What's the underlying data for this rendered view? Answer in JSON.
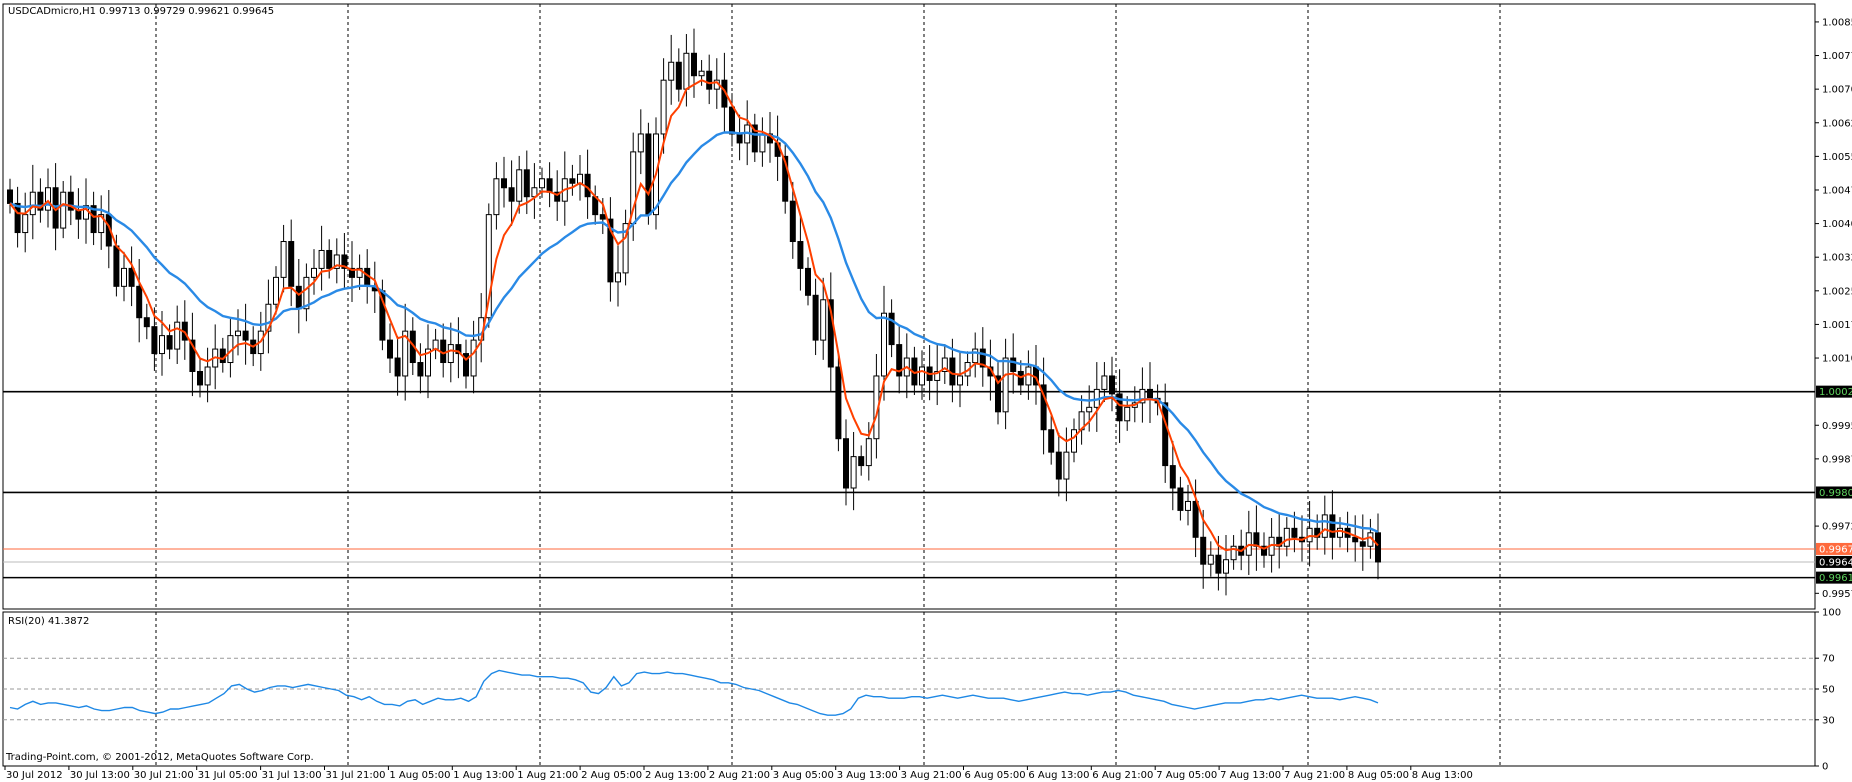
{
  "header": {
    "symbol_info": "USDCADmicro,H1  0.99713 0.99729 0.99621 0.99645"
  },
  "footer": {
    "copyright": "Trading-Point.com, © 2001-2012, MetaQuotes Software Corp."
  },
  "colors": {
    "background": "#ffffff",
    "candle_bull": "#ffffff",
    "candle_bear": "#000000",
    "ma_fast": "#ff4000",
    "ma_slow": "#2a8ae6",
    "rsi_line": "#1e88e5",
    "current_price_line": "#ff6a3d",
    "level_line": "#000000"
  },
  "chart_data": [
    {
      "type": "candlestick",
      "timeframe": "H1",
      "ylim": [
        0.9954,
        1.0089
      ],
      "y_ticks": [
        "1.00850",
        "1.00775",
        "1.00700",
        "1.00625",
        "1.00550",
        "1.00475",
        "1.00400",
        "1.00325",
        "1.00250",
        "1.00175",
        "1.00100",
        "0.99950",
        "0.99875",
        "0.99725",
        "0.99575"
      ],
      "x_ticks": [
        "30 Jul 2012",
        "30 Jul 13:00",
        "30 Jul 21:00",
        "31 Jul 05:00",
        "31 Jul 13:00",
        "31 Jul 21:00",
        "1 Aug 05:00",
        "1 Aug 13:00",
        "1 Aug 21:00",
        "2 Aug 05:00",
        "2 Aug 13:00",
        "2 Aug 21:00",
        "3 Aug 05:00",
        "3 Aug 13:00",
        "3 Aug 21:00",
        "6 Aug 05:00",
        "6 Aug 13:00",
        "6 Aug 21:00",
        "7 Aug 05:00",
        "7 Aug 13:00",
        "7 Aug 21:00",
        "8 Aug 05:00",
        "8 Aug 13:00"
      ],
      "horizontal_levels": [
        {
          "value": 1.00025,
          "label": "1.00025"
        },
        {
          "value": 0.998,
          "label": "0.99800"
        },
        {
          "value": 0.9961,
          "label": "0.99610"
        }
      ],
      "price_tags": [
        {
          "value": 0.99674,
          "label": "0.99674",
          "color": "#ff6a3d"
        },
        {
          "value": 0.99645,
          "label": "0.99645",
          "color": "#000000"
        }
      ],
      "closes": [
        1.00445,
        1.0038,
        1.0042,
        1.0047,
        1.0043,
        1.0048,
        1.0039,
        1.0047,
        1.0043,
        1.0041,
        1.0044,
        1.0038,
        1.0042,
        1.0035,
        1.0026,
        1.003,
        1.0026,
        1.0019,
        1.0017,
        1.0011,
        1.0015,
        1.0012,
        1.0018,
        1.0014,
        1.0007,
        1.0004,
        1.0008,
        1.0012,
        1.0009,
        1.0015,
        1.0016,
        1.0014,
        1.0011,
        1.0016,
        1.0022,
        1.0028,
        1.0036,
        1.0026,
        1.0021,
        1.0028,
        1.003,
        1.0034,
        1.003,
        1.0033,
        1.003,
        1.0028,
        1.003,
        1.0026,
        1.0025,
        1.0014,
        1.001,
        1.0006,
        1.0016,
        1.0009,
        1.0006,
        1.0012,
        1.0014,
        1.0009,
        1.0013,
        1.0011,
        1.0006,
        1.0014,
        1.0019,
        1.0042,
        1.005,
        1.0048,
        1.0045,
        1.0052,
        1.0046,
        1.0048,
        1.005,
        1.0047,
        1.0045,
        1.005,
        1.0049,
        1.0051,
        1.0046,
        1.0042,
        1.0041,
        1.0027,
        1.0029,
        1.004,
        1.0056,
        1.006,
        1.0042,
        1.006,
        1.0072,
        1.0076,
        1.007,
        1.0078,
        1.0073,
        1.0074,
        1.007,
        1.0072,
        1.0066,
        1.006,
        1.0058,
        1.0062,
        1.0056,
        1.006,
        1.0058,
        1.0055,
        1.0045,
        1.0036,
        1.003,
        1.0024,
        1.0014,
        1.0023,
        1.0008,
        0.9992,
        0.9981,
        0.9988,
        0.9986,
        0.9992,
        1.0006,
        1.002,
        1.0013,
        1.0006,
        1.001,
        1.0004,
        1.0008,
        1.0005,
        1.0007,
        1.001,
        1.0004,
        1.0006,
        1.0009,
        1.0012,
        1.0008,
        1.0006,
        0.9998,
        1.001,
        1.0007,
        1.0004,
        1.0008,
        1.0004,
        0.9994,
        0.9989,
        0.9983,
        0.9989,
        0.9994,
        0.9998,
        0.9999,
        1.0003,
        1.0006,
        1.0002,
        0.9996,
        0.9999,
        1.0,
        1.0003,
        1.0001,
        1.0,
        0.9986,
        0.9981,
        0.9976,
        0.9978,
        0.997,
        0.9964,
        0.9966,
        0.9962,
        0.9965,
        0.9968,
        0.9966,
        0.9971,
        0.9968,
        0.9966,
        0.997,
        0.9968,
        0.9972,
        0.997,
        0.9969,
        0.9972,
        0.997,
        0.9975,
        0.997,
        0.9972,
        0.997,
        0.9969,
        0.9968,
        0.9971,
        0.99645
      ],
      "series": [
        {
          "name": "",
          "kind": "fast_moving_average",
          "color": "#ff4000"
        },
        {
          "name": "",
          "kind": "slow_moving_average",
          "color": "#2a8ae6"
        }
      ]
    },
    {
      "type": "line",
      "indicator_label": "RSI(20) 41.3872",
      "ylim": [
        0,
        100
      ],
      "y_ticks": [
        "100",
        "70",
        "50",
        "30",
        "0"
      ],
      "levels": [
        30,
        50,
        70
      ],
      "values": [
        38,
        37,
        40,
        42,
        40,
        41,
        41,
        40,
        39,
        38,
        39,
        37,
        36,
        36,
        37,
        38,
        38,
        36,
        35,
        34,
        35,
        37,
        37,
        38,
        39,
        40,
        41,
        44,
        47,
        52,
        53,
        50,
        48,
        49,
        51,
        52,
        52,
        51,
        52,
        53,
        52,
        51,
        50,
        49,
        46,
        45,
        43,
        45,
        42,
        40,
        40,
        39,
        42,
        43,
        40,
        42,
        44,
        43,
        43,
        44,
        42,
        45,
        55,
        60,
        62,
        61,
        60,
        59,
        59,
        58,
        58,
        58,
        57,
        57,
        56,
        54,
        48,
        47,
        51,
        58,
        52,
        54,
        60,
        61,
        60,
        60,
        61,
        60,
        60,
        59,
        58,
        57,
        56,
        54,
        54,
        53,
        51,
        50,
        49,
        47,
        45,
        43,
        41,
        40,
        38,
        36,
        34,
        33,
        33,
        34,
        37,
        44,
        46,
        45,
        45,
        44,
        44,
        44,
        45,
        45,
        44,
        45,
        46,
        45,
        44,
        45,
        46,
        45,
        44,
        44,
        44,
        43,
        42,
        43,
        44,
        45,
        46,
        47,
        48,
        47,
        47,
        46,
        47,
        48,
        48,
        49,
        48,
        46,
        45,
        44,
        43,
        42,
        40,
        39,
        38,
        37,
        38,
        39,
        40,
        41,
        41,
        41,
        42,
        43,
        43,
        44,
        43,
        44,
        45,
        46,
        45,
        44,
        44,
        44,
        43,
        44,
        45,
        44,
        43,
        41
      ]
    }
  ]
}
